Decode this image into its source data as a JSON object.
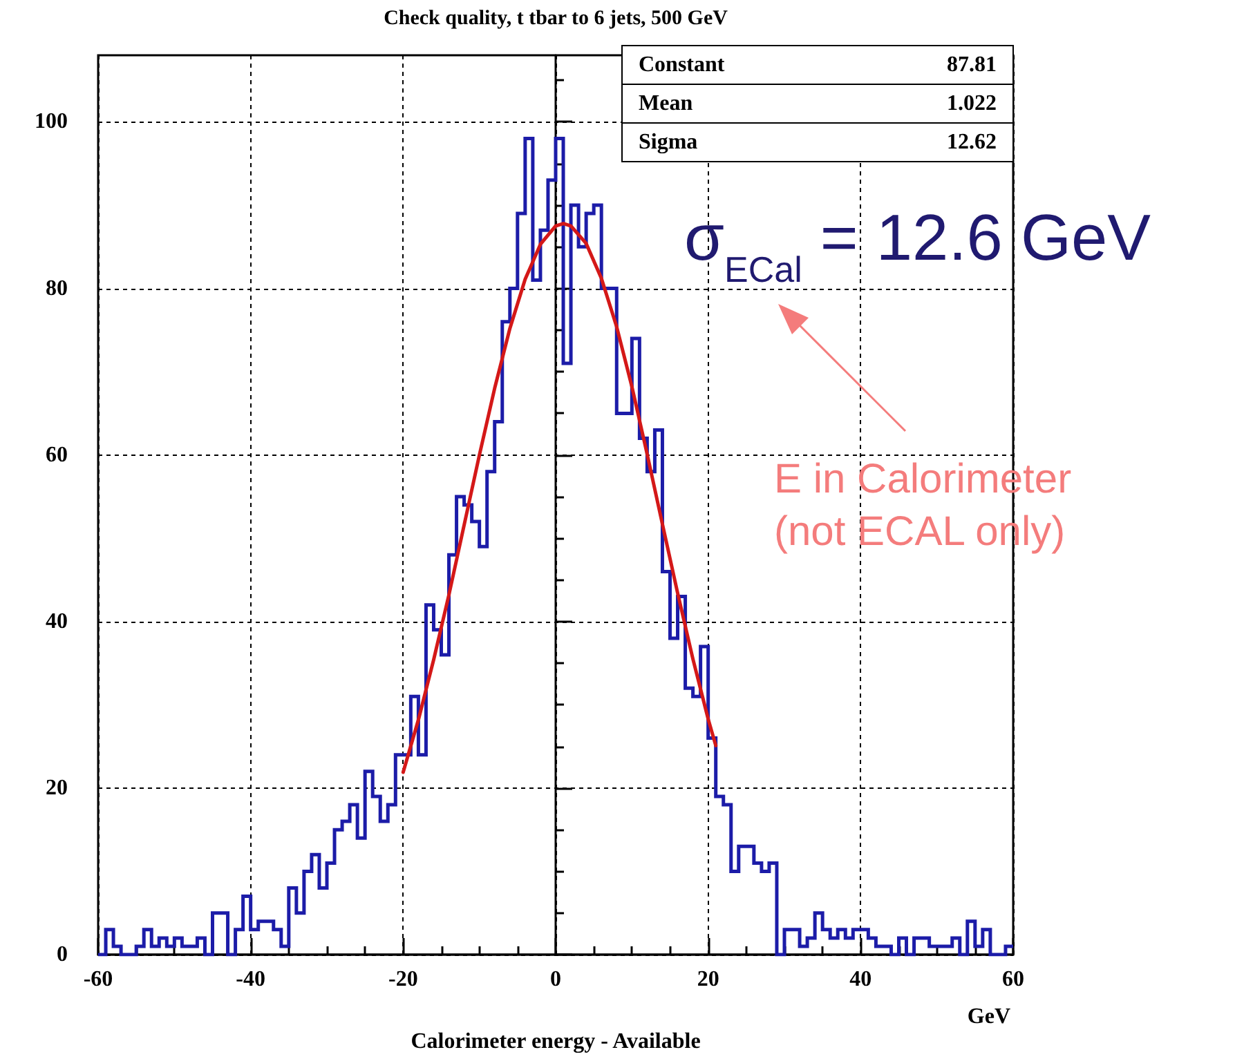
{
  "chart_data": {
    "type": "histogram",
    "title": "Check quality, t tbar to 6 jets, 500 GeV",
    "xlabel": "Calorimeter energy - Available",
    "xlim": [
      -60,
      60
    ],
    "xticks": [
      -60,
      -40,
      -20,
      0,
      20,
      40,
      60
    ],
    "ylim": [
      0,
      108
    ],
    "yticks": [
      0,
      20,
      40,
      60,
      80,
      100
    ],
    "grid": true,
    "annotations": [
      "Constant",
      "87.81",
      "Mean",
      "1.022",
      "Sigma",
      "12.62",
      "σ$_{ECal}$ = 12.6 GeV",
      "E in Calorimeter\n(not ECAL only)",
      "GeV"
    ],
    "series": [
      {
        "color": "#1c1ca8",
        "bins": [
          -60,
          -59,
          -58,
          -57,
          -56,
          -55,
          -54,
          -53,
          -52,
          -51,
          -50,
          -49,
          -48,
          -47,
          -46,
          -45,
          -44,
          -43,
          -42,
          -41,
          -40,
          -39,
          -38,
          -37,
          -36,
          -35,
          -34,
          -33,
          -32,
          -31,
          -30,
          -29,
          -28,
          -27,
          -26,
          -25,
          -24,
          -23,
          -22,
          -21,
          -20,
          -19,
          -18,
          -17,
          -16,
          -15,
          -14,
          -13,
          -12,
          -11,
          -10,
          -9,
          -8,
          -7,
          -6,
          -5,
          -4,
          -3,
          -2,
          -1,
          0,
          1,
          2,
          3,
          4,
          5,
          6,
          7,
          8,
          9,
          10,
          11,
          12,
          13,
          14,
          15,
          16,
          17,
          18,
          19,
          20,
          21,
          22,
          23,
          24,
          25,
          26,
          27,
          28,
          29,
          30,
          31,
          32,
          33,
          34,
          35,
          36,
          37,
          38,
          39,
          40,
          41,
          42,
          43,
          44,
          45,
          46,
          47,
          48,
          49,
          50,
          51,
          52,
          53,
          54,
          55,
          56,
          57,
          58,
          59,
          60
        ],
        "values": [
          0,
          3,
          1,
          0,
          0,
          1,
          3,
          1,
          2,
          1,
          2,
          1,
          1,
          2,
          0,
          5,
          5,
          0,
          3,
          7,
          3,
          4,
          4,
          3,
          1,
          8,
          5,
          10,
          12,
          8,
          11,
          15,
          16,
          18,
          14,
          22,
          19,
          16,
          18,
          24,
          24,
          31,
          24,
          42,
          39,
          36,
          48,
          55,
          54,
          52,
          49,
          58,
          64,
          76,
          80,
          89,
          98,
          81,
          87,
          93,
          98,
          71,
          90,
          85,
          89,
          90,
          80,
          80,
          65,
          65,
          74,
          62,
          58,
          63,
          46,
          38,
          43,
          32,
          31,
          37,
          26,
          19,
          18,
          10,
          13,
          13,
          11,
          10,
          11,
          0,
          3,
          3,
          1,
          2,
          5,
          3,
          2,
          3,
          2,
          3,
          3,
          2,
          1,
          1,
          0,
          2,
          0,
          2,
          2,
          1,
          1,
          1,
          2,
          0,
          4,
          1,
          3,
          0,
          0,
          1
        ]
      },
      {
        "type": "line",
        "color": "#d41818",
        "x": [
          -20,
          -18,
          -16,
          -14,
          -12,
          -10,
          -8,
          -6,
          -4,
          -2,
          0,
          1.022,
          2,
          4,
          6,
          8,
          10,
          12,
          14,
          16,
          18,
          20,
          21
        ],
        "values": [
          21.9,
          28.2,
          35.4,
          43.2,
          51.6,
          60.0,
          68.0,
          75.2,
          81.1,
          85.3,
          87.5,
          87.8,
          87.5,
          85.4,
          81.2,
          75.4,
          68.2,
          60.1,
          51.7,
          43.4,
          35.5,
          28.3,
          25.1
        ]
      }
    ]
  }
}
